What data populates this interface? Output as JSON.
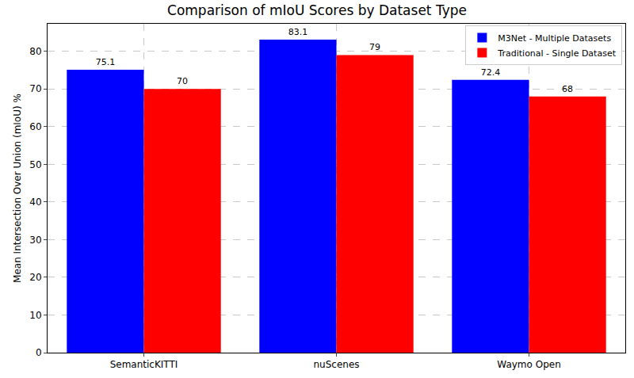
{
  "chart_data": {
    "type": "bar",
    "title": "Comparison of mIoU Scores by Dataset Type",
    "y_label": "Mean Intersection Over Union (mIoU) %",
    "categories": [
      "SemanticKITTI",
      "nuScenes",
      "Waymo Open"
    ],
    "series": [
      {
        "name": "M3Net - Multiple Datasets",
        "color": "#0000ff",
        "values": [
          75.1,
          83.1,
          72.4
        ]
      },
      {
        "name": "Traditional - Single Dataset",
        "color": "#ff0000",
        "values": [
          70,
          79,
          68
        ]
      }
    ],
    "ylim": [
      0,
      87.3
    ],
    "yticks": [
      0,
      10,
      20,
      30,
      40,
      50,
      60,
      70,
      80
    ],
    "grid": true,
    "legend": "upper right",
    "data_labels": true
  }
}
